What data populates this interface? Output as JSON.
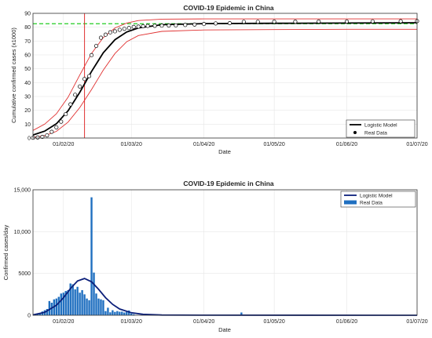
{
  "chart_data": [
    {
      "type": "line",
      "title": "COVID-19 Epidemic in China",
      "xlabel": "Date",
      "ylabel": "Cumulative confirmed cases (x1000)",
      "xlim": [
        "2020-01-19",
        "2020-07-01"
      ],
      "ylim": [
        0,
        90
      ],
      "x_ticks": [
        "01/02/20",
        "01/03/20",
        "01/04/20",
        "01/05/20",
        "01/06/20",
        "01/07/20"
      ],
      "y_ticks": [
        "0",
        "10",
        "20",
        "30",
        "40",
        "50",
        "60",
        "70",
        "80",
        "90"
      ],
      "grid": true,
      "legend_position": "bottom-right",
      "legend": [
        "Logistic Model",
        "Real Data"
      ],
      "reference_lines": {
        "horizontal_dashed_green": 82.5,
        "vertical_red": "2020-02-10"
      },
      "series": [
        {
          "name": "Logistic Model",
          "color": "#000000",
          "x": [
            "2020-01-19",
            "2020-01-24",
            "2020-01-29",
            "2020-02-03",
            "2020-02-08",
            "2020-02-13",
            "2020-02-18",
            "2020-02-23",
            "2020-02-28",
            "2020-03-04",
            "2020-03-14",
            "2020-04-01",
            "2020-05-01",
            "2020-06-01",
            "2020-07-01"
          ],
          "values": [
            2.2,
            5.0,
            10.3,
            19.7,
            33.0,
            48.0,
            61.5,
            71.0,
            76.5,
            79.5,
            81.8,
            82.6,
            82.8,
            83.0,
            83.2
          ]
        },
        {
          "name": "Confidence bound (upper)",
          "color": "#e03030",
          "x": [
            "2020-01-19",
            "2020-01-24",
            "2020-01-29",
            "2020-02-03",
            "2020-02-08",
            "2020-02-13",
            "2020-02-18",
            "2020-02-23",
            "2020-02-28",
            "2020-03-04",
            "2020-03-14",
            "2020-04-01",
            "2020-05-01",
            "2020-06-01",
            "2020-07-01"
          ],
          "values": [
            5.5,
            10.0,
            17.5,
            29.5,
            45.5,
            61.0,
            72.5,
            79.5,
            83.0,
            84.8,
            85.8,
            86.0,
            86.0,
            86.0,
            86.0
          ]
        },
        {
          "name": "Confidence bound (lower)",
          "color": "#e03030",
          "x": [
            "2020-01-19",
            "2020-01-24",
            "2020-01-29",
            "2020-02-03",
            "2020-02-08",
            "2020-02-13",
            "2020-02-18",
            "2020-02-23",
            "2020-02-28",
            "2020-03-04",
            "2020-03-14",
            "2020-04-01",
            "2020-05-01",
            "2020-06-01",
            "2020-07-01"
          ],
          "values": [
            0.5,
            1.7,
            4.8,
            11.5,
            22.0,
            35.0,
            49.0,
            61.0,
            69.5,
            74.0,
            77.0,
            78.0,
            78.3,
            78.5,
            78.5
          ]
        },
        {
          "name": "Real Data",
          "color": "#000000",
          "x": [
            "2020-01-19",
            "2020-01-21",
            "2020-01-23",
            "2020-01-25",
            "2020-01-27",
            "2020-01-29",
            "2020-01-31",
            "2020-02-02",
            "2020-02-04",
            "2020-02-06",
            "2020-02-08",
            "2020-02-10",
            "2020-02-12",
            "2020-02-13",
            "2020-02-15",
            "2020-02-17",
            "2020-02-19",
            "2020-02-21",
            "2020-02-23",
            "2020-02-25",
            "2020-02-27",
            "2020-02-29",
            "2020-03-02",
            "2020-03-04",
            "2020-03-06",
            "2020-03-08",
            "2020-03-11",
            "2020-03-14",
            "2020-03-17",
            "2020-03-20",
            "2020-03-24",
            "2020-03-28",
            "2020-04-01",
            "2020-04-06",
            "2020-04-12",
            "2020-04-18",
            "2020-04-24",
            "2020-05-01",
            "2020-05-10",
            "2020-05-20",
            "2020-06-01",
            "2020-06-12",
            "2020-06-24",
            "2020-07-01"
          ],
          "values": [
            0.2,
            0.4,
            0.8,
            1.9,
            4.5,
            7.7,
            11.8,
            17.2,
            24.3,
            31.2,
            37.2,
            42.6,
            44.7,
            59.8,
            66.5,
            72.4,
            74.6,
            76.3,
            77.0,
            78.1,
            78.8,
            79.4,
            80.2,
            80.4,
            80.7,
            80.9,
            81.0,
            81.1,
            81.2,
            81.3,
            81.6,
            81.9,
            82.3,
            82.7,
            82.9,
            83.9,
            83.9,
            84.0,
            84.0,
            84.1,
            84.1,
            84.2,
            84.3,
            84.4
          ]
        }
      ]
    },
    {
      "type": "bar",
      "title": "COVID-19 Epidemic in China",
      "xlabel": "Date",
      "ylabel": "Confirmed cases/day",
      "xlim": [
        "2020-01-19",
        "2020-07-01"
      ],
      "ylim": [
        0,
        15000
      ],
      "x_ticks": [
        "01/02/20",
        "01/03/20",
        "01/04/20",
        "01/05/20",
        "01/06/20",
        "01/07/20"
      ],
      "y_ticks": [
        "0",
        "5000",
        "10,000",
        "15,000"
      ],
      "grid": true,
      "legend_position": "top-right",
      "legend": [
        "Logistic Model",
        "Real Data"
      ],
      "series": [
        {
          "name": "Real Data",
          "color": "#1f6fc0",
          "x": [
            "2020-01-20",
            "2020-01-21",
            "2020-01-22",
            "2020-01-23",
            "2020-01-24",
            "2020-01-25",
            "2020-01-26",
            "2020-01-27",
            "2020-01-28",
            "2020-01-29",
            "2020-01-30",
            "2020-01-31",
            "2020-02-01",
            "2020-02-02",
            "2020-02-03",
            "2020-02-04",
            "2020-02-05",
            "2020-02-06",
            "2020-02-07",
            "2020-02-08",
            "2020-02-09",
            "2020-02-10",
            "2020-02-11",
            "2020-02-12",
            "2020-02-13",
            "2020-02-14",
            "2020-02-15",
            "2020-02-16",
            "2020-02-17",
            "2020-02-18",
            "2020-02-19",
            "2020-02-20",
            "2020-02-21",
            "2020-02-22",
            "2020-02-23",
            "2020-02-24",
            "2020-02-25",
            "2020-02-26",
            "2020-02-27",
            "2020-02-28",
            "2020-02-29",
            "2020-03-01",
            "2020-03-02",
            "2020-04-17"
          ],
          "values": [
            80,
            150,
            250,
            450,
            600,
            750,
            1700,
            1500,
            1900,
            2000,
            2200,
            2600,
            2700,
            2900,
            3000,
            3800,
            3700,
            3100,
            3400,
            2700,
            3000,
            2500,
            2000,
            1800,
            14100,
            5100,
            2600,
            2000,
            1900,
            1800,
            500,
            900,
            350,
            600,
            400,
            500,
            420,
            430,
            330,
            400,
            570,
            200,
            120,
            330
          ]
        },
        {
          "name": "Logistic Model",
          "color": "#0b1f7a",
          "x": [
            "2020-01-19",
            "2020-01-24",
            "2020-01-29",
            "2020-02-01",
            "2020-02-04",
            "2020-02-07",
            "2020-02-10",
            "2020-02-13",
            "2020-02-16",
            "2020-02-19",
            "2020-02-22",
            "2020-02-25",
            "2020-03-01",
            "2020-03-06",
            "2020-03-14",
            "2020-04-01",
            "2020-07-01"
          ],
          "values": [
            50,
            350,
            1200,
            2100,
            3200,
            4100,
            4400,
            4000,
            3100,
            2100,
            1300,
            750,
            300,
            110,
            30,
            5,
            0
          ]
        }
      ]
    }
  ]
}
